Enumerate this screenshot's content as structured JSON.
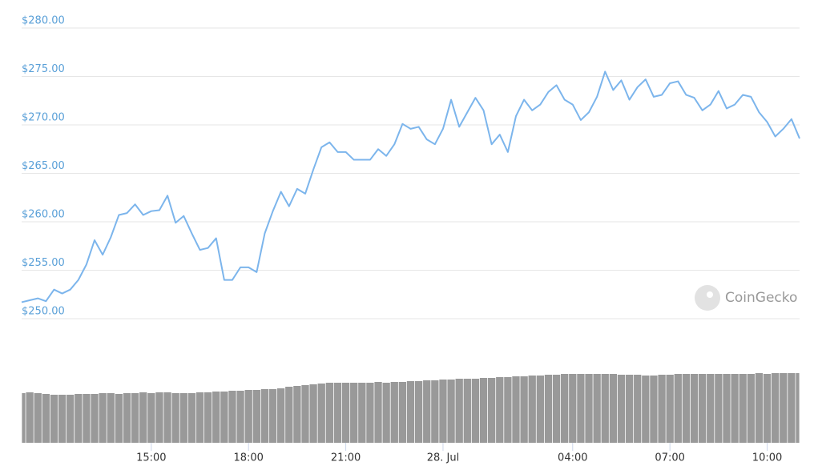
{
  "chart_data": {
    "type": "line",
    "color": "#7cb5ec",
    "x": [
      11,
      11.25,
      11.5,
      11.75,
      12,
      12.25,
      12.5,
      12.75,
      13,
      13.25,
      13.5,
      13.75,
      14,
      14.25,
      14.5,
      14.75,
      15,
      15.25,
      15.5,
      15.75,
      16,
      16.25,
      16.5,
      16.75,
      17,
      17.25,
      17.5,
      17.75,
      18,
      18.25,
      18.5,
      18.75,
      19,
      19.25,
      19.5,
      19.75,
      20,
      20.25,
      20.5,
      20.75,
      21,
      21.25,
      21.5,
      21.75,
      22,
      22.25,
      22.5,
      22.75,
      23,
      23.25,
      23.5,
      23.75,
      24,
      24.25,
      24.5,
      24.75,
      25,
      25.25,
      25.5,
      25.75,
      26,
      26.25,
      26.5,
      26.75,
      27,
      27.25,
      27.5,
      27.75,
      28,
      28.25,
      28.5,
      28.75,
      29,
      29.25,
      29.5,
      29.75,
      30,
      30.25,
      30.5,
      30.75,
      31,
      31.25,
      31.5,
      31.75,
      32,
      32.25,
      32.5,
      32.75,
      33,
      33.25,
      33.5,
      33.75,
      34,
      34.25,
      34.5,
      34.75,
      35
    ],
    "values": [
      251.7,
      251.9,
      252.1,
      251.8,
      253.0,
      252.6,
      253.0,
      254.0,
      255.6,
      258.1,
      256.6,
      258.4,
      260.7,
      260.9,
      261.8,
      260.7,
      261.1,
      261.2,
      262.7,
      259.9,
      260.6,
      258.8,
      257.1,
      257.3,
      258.3,
      254.0,
      254.0,
      255.3,
      255.3,
      254.8,
      258.8,
      261.1,
      263.1,
      261.6,
      263.4,
      262.9,
      265.4,
      267.7,
      268.2,
      267.2,
      267.2,
      266.4,
      266.4,
      266.4,
      267.5,
      266.8,
      268.0,
      270.1,
      269.6,
      269.8,
      268.5,
      268.0,
      269.6,
      272.6,
      269.8,
      271.3,
      272.8,
      271.5,
      268.0,
      269.0,
      267.2,
      270.9,
      272.6,
      271.5,
      272.1,
      273.4,
      274.1,
      272.6,
      272.1,
      270.5,
      271.3,
      272.9,
      275.5,
      273.6,
      274.6,
      272.6,
      273.9,
      274.7,
      272.9,
      273.1,
      274.3,
      274.5,
      273.1,
      272.8,
      271.5,
      272.1,
      273.5,
      271.7,
      272.1,
      273.1,
      272.9,
      271.3,
      270.3,
      268.8,
      269.6,
      270.6,
      268.6
    ],
    "volume": {
      "color": "#999999",
      "values": [
        62,
        63,
        62,
        61,
        60,
        60,
        60,
        61,
        61,
        61,
        62,
        62,
        61,
        62,
        62,
        63,
        62,
        63,
        63,
        62,
        62,
        62,
        63,
        63,
        64,
        64,
        65,
        65,
        66,
        66,
        67,
        67,
        68,
        70,
        71,
        72,
        73,
        74,
        75,
        75,
        75,
        75,
        75,
        75,
        76,
        75,
        76,
        76,
        77,
        77,
        78,
        78,
        79,
        79,
        80,
        80,
        80,
        81,
        81,
        82,
        82,
        83,
        83,
        84,
        84,
        85,
        85,
        86,
        86,
        86,
        86,
        86,
        86,
        86,
        85,
        85,
        85,
        84,
        84,
        85,
        85,
        86,
        86,
        86,
        86,
        86,
        86,
        86,
        86,
        86,
        86,
        87,
        86,
        87,
        87,
        87,
        87
      ]
    },
    "y2lim": [
      0,
      100
    ],
    "xlim": [
      11,
      35
    ],
    "xticks": [
      {
        "value": 15,
        "label": "15:00"
      },
      {
        "value": 18,
        "label": "18:00"
      },
      {
        "value": 21,
        "label": "21:00"
      },
      {
        "value": 24,
        "label": "28. Jul"
      },
      {
        "value": 28,
        "label": "04:00"
      },
      {
        "value": 31,
        "label": "07:00"
      },
      {
        "value": 34,
        "label": "10:00"
      }
    ],
    "ylim": [
      250,
      280
    ],
    "yticks": [
      {
        "value": 250,
        "label": "$250.00"
      },
      {
        "value": 255,
        "label": "$255.00"
      },
      {
        "value": 260,
        "label": "$260.00"
      },
      {
        "value": 265,
        "label": "$265.00"
      },
      {
        "value": 270,
        "label": "$270.00"
      },
      {
        "value": 275,
        "label": "$275.00"
      },
      {
        "value": 280,
        "label": "$280.00"
      }
    ],
    "grid": true,
    "watermark": "CoinGecko"
  }
}
